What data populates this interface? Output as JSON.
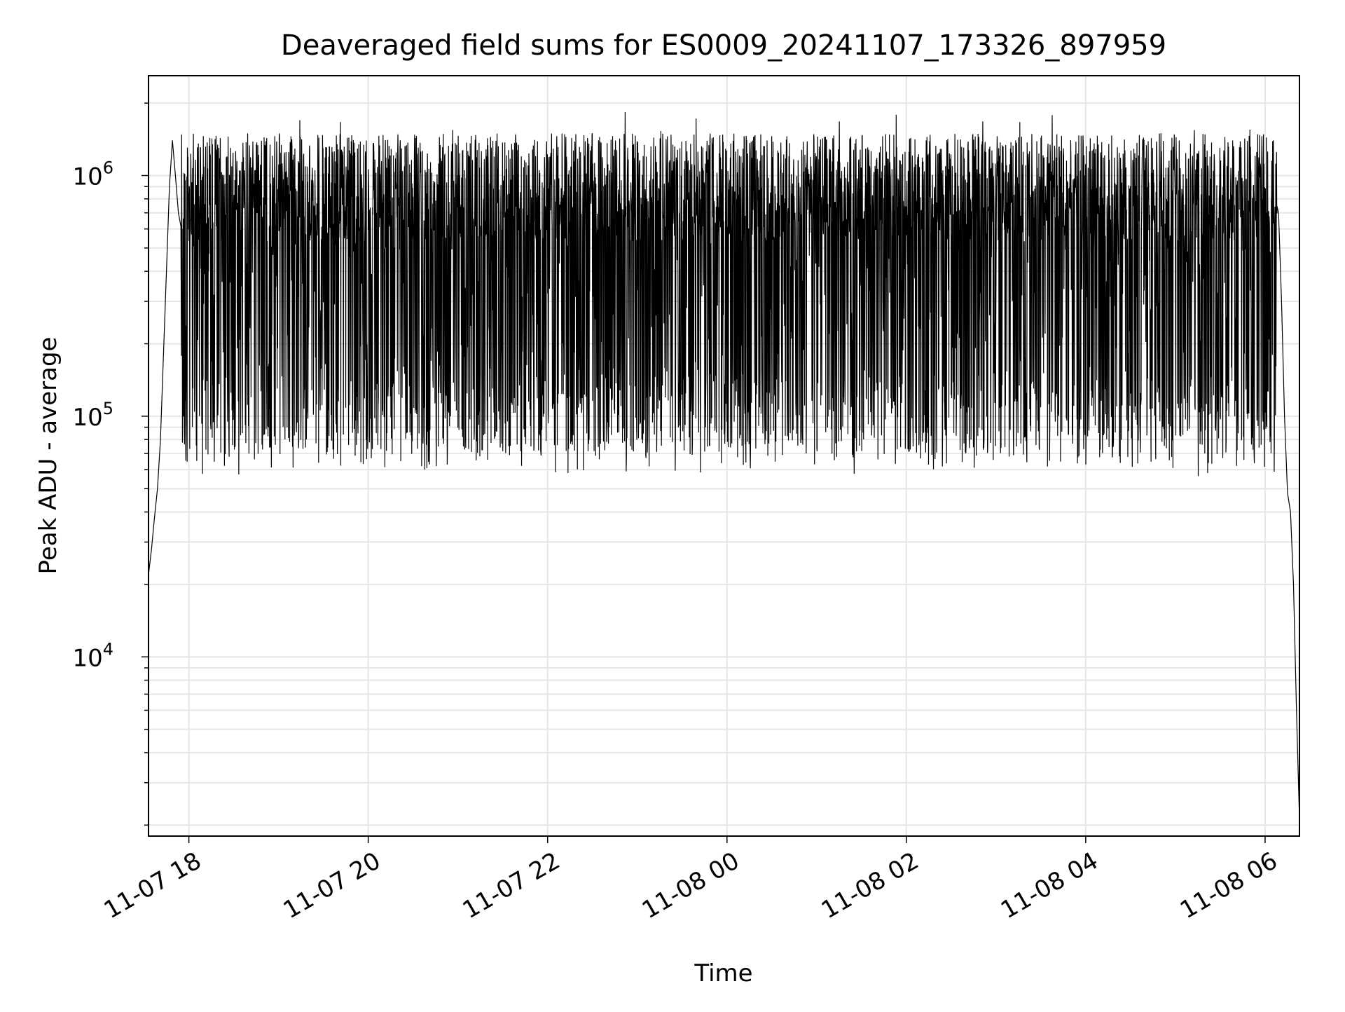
{
  "chart_data": {
    "type": "line",
    "title": "Deaveraged field sums for ES0009_20241107_173326_897959",
    "xlabel": "Time",
    "ylabel": "Peak ADU - average",
    "xlim": [
      "2024-11-07 17:33",
      "2024-11-08 06:23"
    ],
    "ylim": [
      1800,
      2600000
    ],
    "yscale": "log",
    "grid": true,
    "line_color": "#000000",
    "grid_color": "#e6e6e6",
    "x_ticks": [
      {
        "value": "2024-11-07 18:00",
        "label": "11-07 18"
      },
      {
        "value": "2024-11-07 20:00",
        "label": "11-07 20"
      },
      {
        "value": "2024-11-07 22:00",
        "label": "11-07 22"
      },
      {
        "value": "2024-11-08 00:00",
        "label": "11-08 00"
      },
      {
        "value": "2024-11-08 02:00",
        "label": "11-08 02"
      },
      {
        "value": "2024-11-08 04:00",
        "label": "11-08 04"
      },
      {
        "value": "2024-11-08 06:00",
        "label": "11-08 06"
      }
    ],
    "y_ticks": [
      {
        "value": 10000,
        "base": "10",
        "exp": "4"
      },
      {
        "value": 100000,
        "base": "10",
        "exp": "5"
      },
      {
        "value": 1000000,
        "base": "10",
        "exp": "6"
      }
    ],
    "series": [
      {
        "x": [
          "2024-11-07 17:33",
          "2024-11-07 17:35",
          "2024-11-07 17:37",
          "2024-11-07 17:39",
          "2024-11-07 17:41",
          "2024-11-07 17:43",
          "2024-11-07 17:45",
          "2024-11-07 17:47",
          "2024-11-07 17:49",
          "2024-11-07 17:51",
          "2024-11-07 17:53",
          "2024-11-07 17:55",
          "2024-11-07 17:57",
          "2024-11-07 18:00",
          "2024-11-07 18:30",
          "2024-11-07 19:00",
          "2024-11-07 19:30",
          "2024-11-07 20:00",
          "2024-11-07 20:30",
          "2024-11-07 21:00",
          "2024-11-07 21:30",
          "2024-11-07 22:00",
          "2024-11-07 22:30",
          "2024-11-07 23:00",
          "2024-11-07 23:30",
          "2024-11-08 00:00",
          "2024-11-08 00:30",
          "2024-11-08 01:00",
          "2024-11-08 01:30",
          "2024-11-08 02:00",
          "2024-11-08 02:30",
          "2024-11-08 03:00",
          "2024-11-08 03:30",
          "2024-11-08 04:00",
          "2024-11-08 04:30",
          "2024-11-08 05:00",
          "2024-11-08 05:30",
          "2024-11-08 06:00",
          "2024-11-08 06:05",
          "2024-11-08 06:09",
          "2024-11-08 06:11",
          "2024-11-08 06:13",
          "2024-11-08 06:15",
          "2024-11-08 06:17",
          "2024-11-08 06:19",
          "2024-11-08 06:21",
          "2024-11-08 06:23"
        ],
        "y": [
          22000,
          28000,
          38000,
          50000,
          80000,
          180000,
          400000,
          900000,
          1400000,
          1000000,
          700000,
          600000,
          500000,
          600000,
          550000,
          500000,
          600000,
          550000,
          500000,
          520000,
          480000,
          550000,
          620000,
          700000,
          750000,
          800000,
          650000,
          500000,
          550000,
          500000,
          480000,
          600000,
          550000,
          500000,
          520000,
          480000,
          450000,
          600000,
          900000,
          700000,
          300000,
          100000,
          48000,
          40000,
          20000,
          6000,
          2100
        ],
        "noise_band": {
          "x": [
            "2024-11-07 17:55",
            "2024-11-08 06:08"
          ],
          "min": 48000,
          "max": 1900000,
          "typical_min": 70000,
          "typical_max": 1500000
        }
      }
    ]
  }
}
